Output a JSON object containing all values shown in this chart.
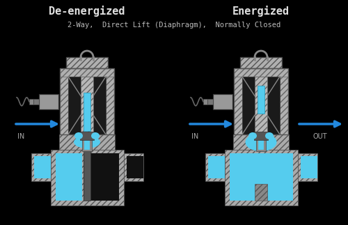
{
  "bg_color": "#000000",
  "title_left": "De-energized",
  "title_right": "Energized",
  "subtitle": "2-Way,  Direct Lift (Diaphragm),  Normally Closed",
  "title_color": "#e0e0e0",
  "subtitle_color": "#bbbbbb",
  "title_font": 11,
  "subtitle_font": 7.5,
  "fluid_color": "#55ccee",
  "metal_light": "#c8c8c8",
  "metal_mid": "#999999",
  "metal_dark": "#666666",
  "metal_darker": "#444444",
  "hatch_color": "#aaaaaa",
  "arrow_color": "#2288dd",
  "label_color": "#aaaaaa"
}
